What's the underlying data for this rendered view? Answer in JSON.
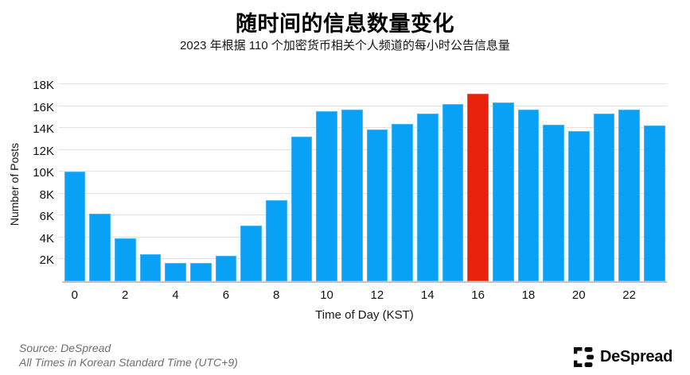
{
  "header": {
    "title": "随时间的信息数量变化",
    "subtitle": "2023 年根据 110 个加密货币相关个人频道的每小时公告信息量"
  },
  "chart_data": {
    "type": "bar",
    "title": "随时间的信息数量变化",
    "subtitle": "2023 年根据 110 个加密货币相关个人频道的每小时公告信息量",
    "xlabel": "Time of Day (KST)",
    "ylabel": "Number of Posts",
    "x": [
      0,
      1,
      2,
      3,
      4,
      5,
      6,
      7,
      8,
      9,
      10,
      11,
      12,
      13,
      14,
      15,
      16,
      17,
      18,
      19,
      20,
      21,
      22,
      23
    ],
    "values": [
      10000,
      6200,
      3900,
      2500,
      1700,
      1700,
      2300,
      5100,
      7400,
      13200,
      15500,
      15700,
      13900,
      14400,
      15300,
      16200,
      17100,
      16300,
      15700,
      14300,
      13700,
      15300,
      15700,
      14200
    ],
    "ylim": [
      0,
      18000
    ],
    "y_tick_step": 2000,
    "y_tick_suffix": "K",
    "x_tick_interval": 2,
    "grid": true,
    "legend": "none",
    "highlight_x": 16,
    "bar_color": "#09A1F5",
    "highlight_color": "#E8220C"
  },
  "footer": {
    "source_line1": "Source: DeSpread",
    "source_line2": "All Times in Korean Standard Time (UTC+9)",
    "brand_name": "DeSpread",
    "brand_color": "#0c0c0c"
  }
}
